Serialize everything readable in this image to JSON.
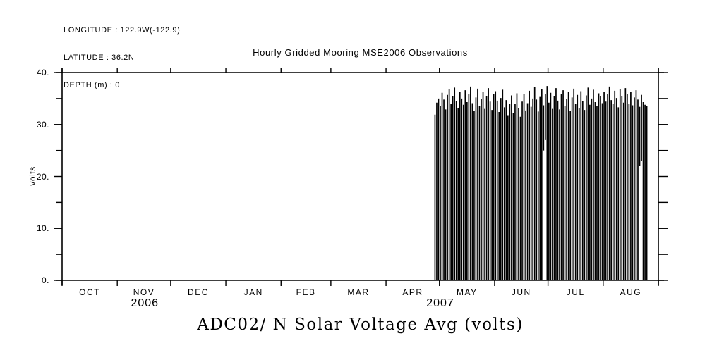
{
  "page": {
    "background": "#ffffff",
    "ink": "#000000"
  },
  "header_info": {
    "longitude": "LONGITUDE : 122.9W(-122.9)",
    "latitude": "LATITUDE : 36.2N",
    "depth": "DEPTH (m) : 0"
  },
  "titles": {
    "plot_title": "Hourly Gridded Mooring MSE2006 Observations",
    "bottom_title": "ADC02/ N Solar Voltage Avg (volts)"
  },
  "chart_data": {
    "type": "line",
    "title": "Hourly Gridded Mooring MSE2006 Observations",
    "subtitle": "ADC02/ N Solar Voltage Avg (volts)",
    "ylabel": "volts",
    "ylim": [
      0,
      40
    ],
    "ytick_major": [
      0,
      10,
      20,
      30,
      40
    ],
    "ytick_labels": [
      "0.",
      "10.",
      "20.",
      "30.",
      "40."
    ],
    "ytick_minor": [
      5,
      15,
      25,
      35
    ],
    "grid": false,
    "legend": false,
    "x_axis": {
      "start": "2006-10-01",
      "end": "2007-09-01",
      "months": [
        "OCT",
        "NOV",
        "DEC",
        "JAN",
        "FEB",
        "MAR",
        "APR",
        "MAY",
        "JUN",
        "JUL",
        "AUG"
      ],
      "month_days": [
        31,
        30,
        31,
        31,
        28,
        31,
        30,
        31,
        30,
        31,
        31
      ],
      "years": [
        {
          "label": "2006",
          "day_center": 46.5
        },
        {
          "label": "2007",
          "day_center": 212.5
        }
      ]
    },
    "series": [
      {
        "name": "N Solar Voltage Avg",
        "description": "Hourly solar voltage: no data Oct 2006 - late Apr 2007; from ~2007-04-28 to ~2007-08-26 it cycles daily between ~0 V at night and 31-37.5 V daytime peaks, drawn as dense vertical daily spikes.",
        "data_start_day": 209,
        "daily_min_default": 0,
        "daily_min_overrides": {
          "61": 25,
          "62": 27,
          "115": 22,
          "116": 23
        },
        "daily_peaks": [
          31.9,
          34.2,
          35.0,
          33.5,
          36.1,
          34.8,
          32.9,
          35.7,
          36.8,
          34.0,
          35.4,
          37.1,
          34.5,
          33.2,
          36.3,
          35.0,
          33.8,
          36.6,
          34.3,
          35.8,
          37.3,
          34.1,
          32.6,
          35.2,
          36.9,
          33.6,
          34.9,
          36.2,
          33.0,
          35.5,
          37.0,
          34.4,
          32.8,
          35.9,
          36.4,
          34.6,
          32.4,
          35.1,
          36.7,
          33.3,
          34.7,
          31.8,
          33.9,
          35.6,
          32.2,
          34.0,
          36.0,
          33.1,
          31.5,
          34.4,
          35.8,
          32.7,
          34.1,
          36.5,
          33.4,
          35.0,
          37.2,
          34.8,
          32.5,
          35.3,
          36.8,
          33.7,
          35.9,
          37.4,
          34.2,
          36.1,
          33.0,
          35.5,
          37.0,
          34.6,
          32.9,
          35.8,
          36.6,
          33.5,
          34.9,
          36.3,
          32.6,
          35.2,
          36.9,
          34.0,
          35.7,
          33.2,
          36.4,
          34.5,
          32.8,
          35.6,
          37.1,
          33.8,
          35.0,
          36.7,
          34.3,
          33.6,
          36.0,
          35.4,
          34.1,
          36.2,
          34.4,
          35.9,
          37.3,
          34.7,
          33.9,
          36.5,
          35.1,
          33.3,
          36.8,
          35.5,
          34.2,
          37.0,
          35.8,
          34.0,
          36.3,
          33.7,
          35.2,
          36.6,
          34.8,
          33.4,
          35.7,
          34.3,
          33.8,
          33.6
        ]
      }
    ]
  }
}
